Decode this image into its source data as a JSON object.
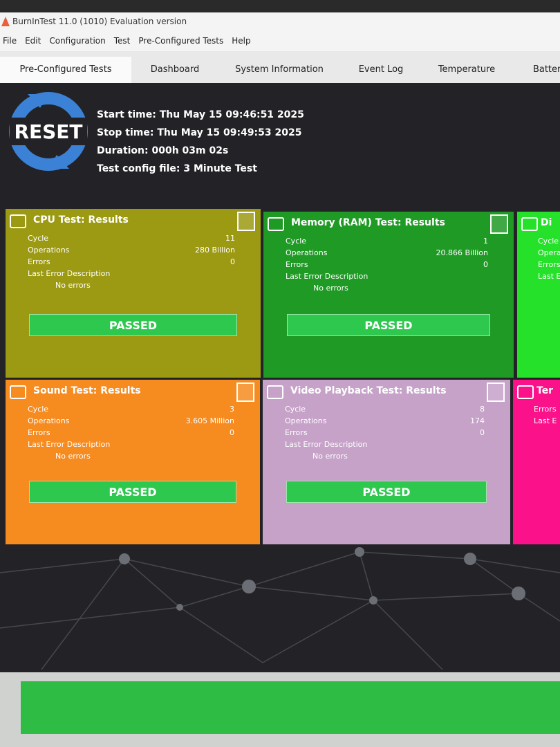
{
  "window": {
    "title": "BurnInTest 11.0 (1010) Evaluation version"
  },
  "menu": [
    "File",
    "Edit",
    "Configuration",
    "Test",
    "Pre-Configured Tests",
    "Help"
  ],
  "tabs": [
    "Pre-Configured Tests",
    "Dashboard",
    "System Information",
    "Event Log",
    "Temperature",
    "Battery"
  ],
  "dashboard": {
    "reset_label": "RESET",
    "info": [
      "Start time: Thu May 15 09:46:51 2025",
      "Stop time: Thu May 15 09:49:53 2025",
      "Duration: 000h 03m 02s",
      "Test config file: 3 Minute Test"
    ],
    "row_labels": [
      "Cycle",
      "Operations",
      "Errors",
      "Last Error Description"
    ],
    "panels": [
      {
        "title": "CPU Test: Results",
        "values": [
          11,
          "280 Billion",
          0
        ],
        "error_description": "No errors",
        "status": "PASSED"
      },
      {
        "title": "Memory (RAM) Test: Results",
        "values": [
          1,
          "20.866 Billion",
          0
        ],
        "error_description": "No errors",
        "status": "PASSED"
      },
      {
        "title": "Di"
      },
      {
        "title": "Sound Test: Results",
        "values": [
          3,
          "3.605 Million",
          0
        ],
        "error_description": "No errors",
        "status": "PASSED"
      },
      {
        "title": "Video Playback Test: Results",
        "values": [
          8,
          174,
          0
        ],
        "error_description": "No errors",
        "status": "PASSED"
      },
      {
        "title": "Ter",
        "row_labels": [
          "Errors",
          "Last E"
        ]
      }
    ]
  }
}
